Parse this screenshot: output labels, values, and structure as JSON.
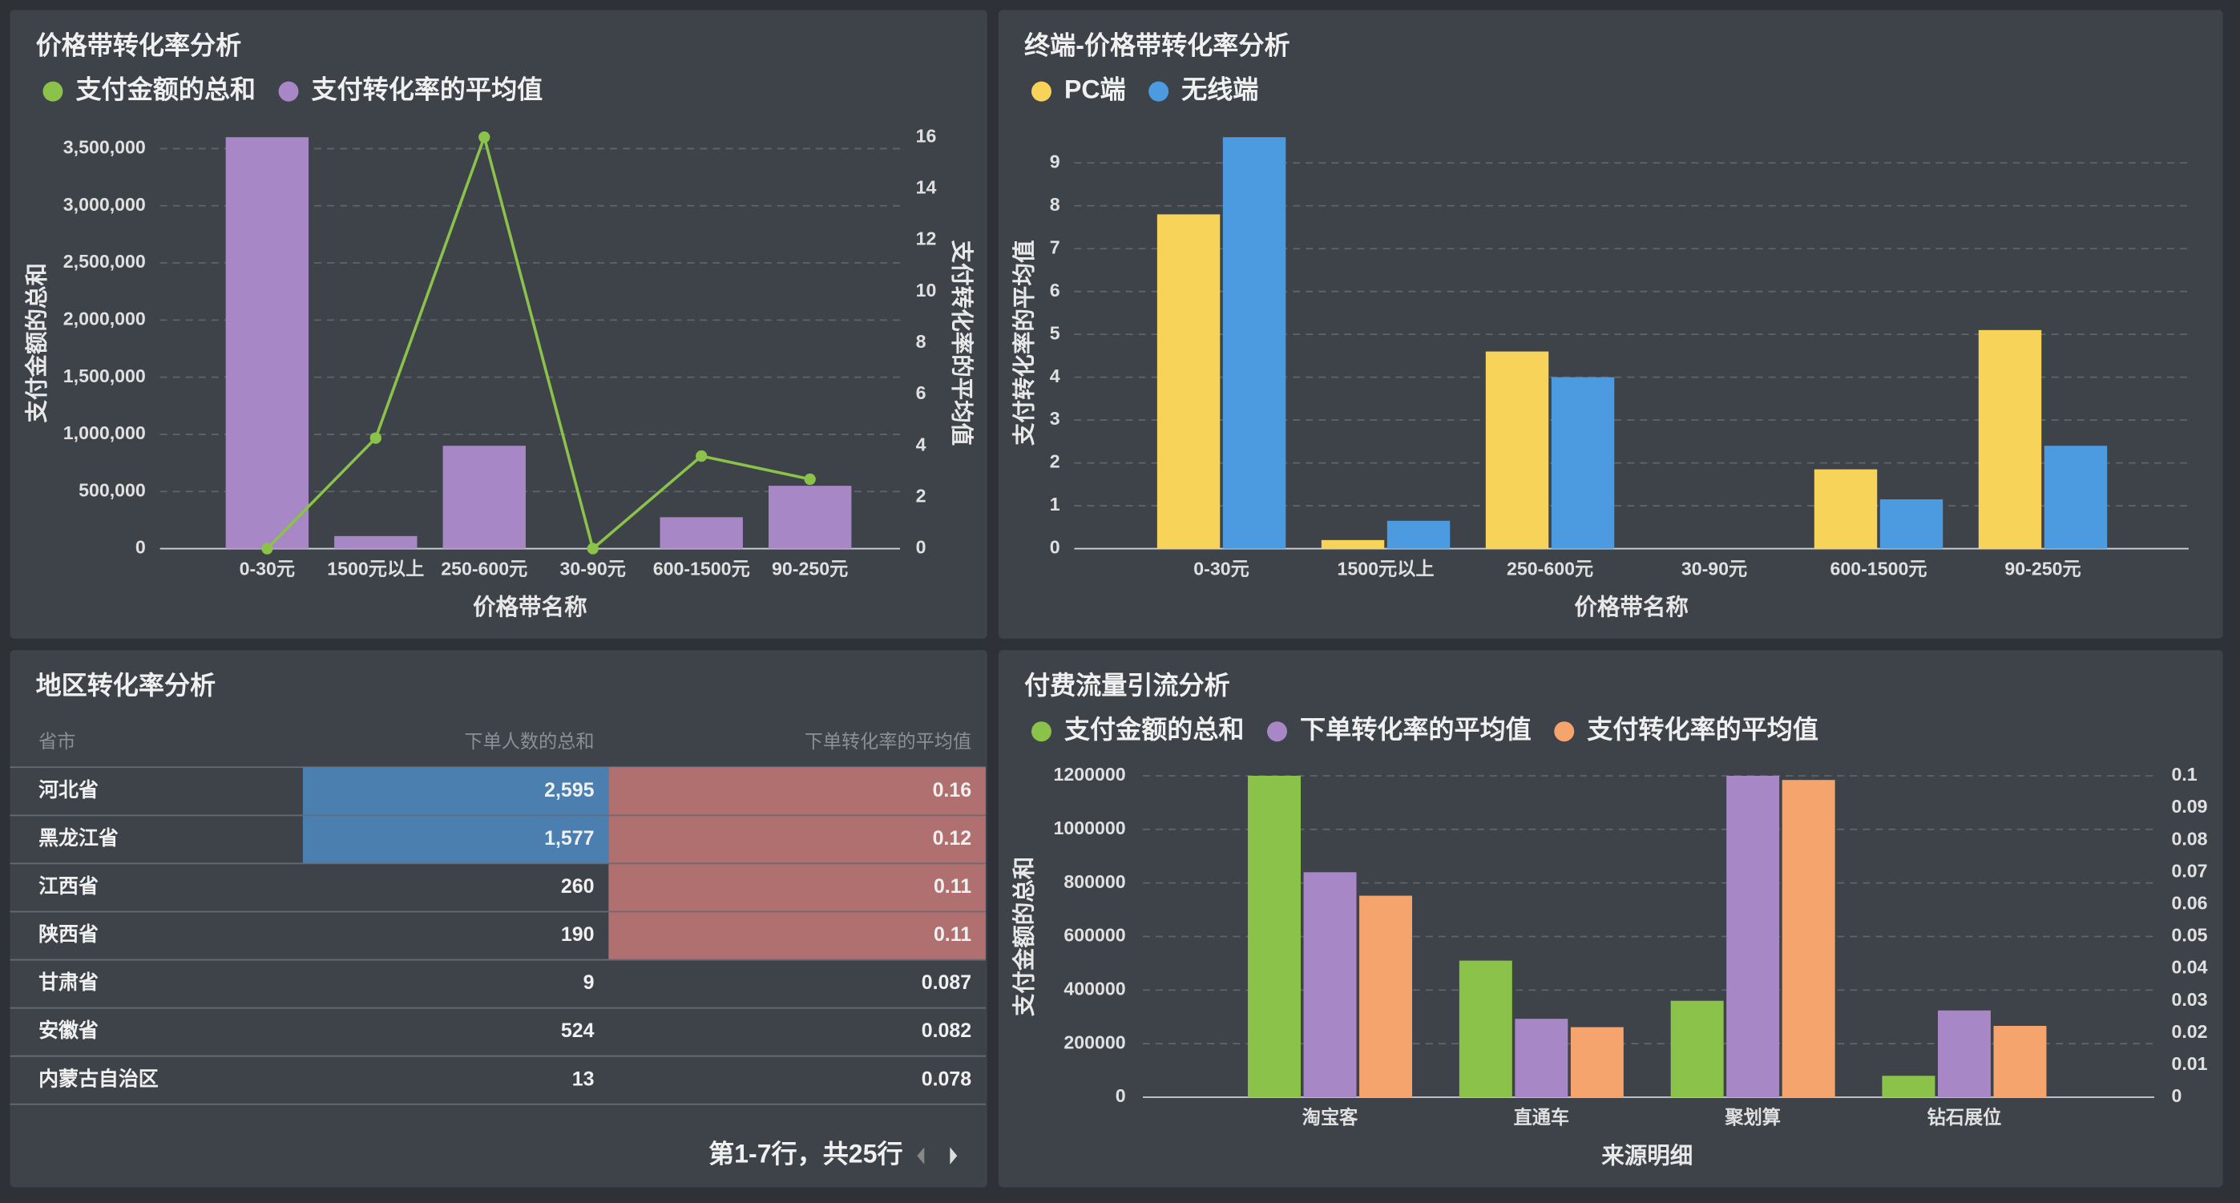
{
  "chart_data": [
    {
      "type": "bar",
      "title": "价格带转化率分析",
      "x_label": "价格带名称",
      "y_label": "支付金额的总和",
      "y2_label": "支付转化率的平均值",
      "categories": [
        "0-30元",
        "1500元以上",
        "250-600元",
        "30-90元",
        "600-1500元",
        "90-250元"
      ],
      "series": [
        {
          "name": "支付金额的总和",
          "color": "#8bc34a",
          "type": "line",
          "axis": "y2",
          "values": [
            0,
            4.3,
            16,
            0,
            3.6,
            2.7
          ]
        },
        {
          "name": "支付转化率的平均值",
          "color": "#a887c7",
          "type": "bar",
          "axis": "y",
          "values": [
            3600000,
            110000,
            900000,
            0,
            275000,
            550000
          ]
        }
      ],
      "ylim": [
        0,
        3600000
      ],
      "yticks": [
        0,
        {
          "value": 500000,
          "label": "500,000"
        },
        {
          "value": 1000000,
          "label": "1,000,000"
        },
        {
          "value": 1500000,
          "label": "1,500,000"
        },
        {
          "value": 2000000,
          "label": "2,000,000"
        },
        {
          "value": 2500000,
          "label": "2,500,000"
        },
        {
          "value": 3000000,
          "label": "3,000,000"
        },
        {
          "value": 3500000,
          "label": "3,500,000"
        }
      ],
      "y2lim": [
        0,
        16
      ],
      "y2ticks": [
        0,
        2,
        4,
        6,
        8,
        10,
        12,
        14,
        16
      ],
      "grid": true
    },
    {
      "type": "bar",
      "title": "终端-价格带转化率分析",
      "x_label": "价格带名称",
      "y_label": "支付转化率的平均值",
      "categories": [
        "0-30元",
        "1500元以上",
        "250-600元",
        "30-90元",
        "600-1500元",
        "90-250元"
      ],
      "series": [
        {
          "name": "PC端",
          "color": "#f7d35a",
          "values": [
            7.8,
            0.2,
            4.6,
            0,
            1.85,
            5.1
          ]
        },
        {
          "name": "无线端",
          "color": "#4c9be0",
          "values": [
            9.6,
            0.65,
            4.0,
            0,
            1.15,
            2.4
          ]
        }
      ],
      "ylim": [
        0,
        9.6
      ],
      "yticks": [
        0,
        1,
        2,
        3,
        4,
        5,
        6,
        7,
        8,
        9
      ],
      "grid": true
    },
    {
      "type": "bar",
      "title": "付费流量引流分析",
      "x_label": "来源明细",
      "y_label": "支付金额的总和",
      "categories": [
        "淘宝客",
        "直通车",
        "聚划算",
        "钻石展位"
      ],
      "series": [
        {
          "name": "支付金额的总和",
          "color": "#8bc34a",
          "axis": "y",
          "values": [
            1200000,
            510000,
            360000,
            80000
          ]
        },
        {
          "name": "下单转化率的平均值",
          "color": "#a887c7",
          "axis": "y2",
          "values": [
            0.07,
            0.0244,
            0.1,
            0.027
          ]
        },
        {
          "name": "支付转化率的平均值",
          "color": "#f4a46c",
          "axis": "y2",
          "values": [
            0.0627,
            0.0218,
            0.0987,
            0.0222
          ]
        }
      ],
      "ylim": [
        0,
        1200000
      ],
      "yticks": [
        0,
        200000,
        400000,
        600000,
        800000,
        1000000,
        1200000
      ],
      "y2lim": [
        0,
        0.1
      ],
      "y2ticks": [
        0,
        0.01,
        0.02,
        0.03,
        0.04,
        0.05,
        0.06,
        0.07,
        0.08,
        0.09,
        0.1
      ],
      "grid": true
    }
  ],
  "table": {
    "title": "地区转化率分析",
    "columns": [
      "省市",
      "下单人数的总和",
      "下单转化率的平均值"
    ],
    "rows": [
      [
        "河北省",
        "2,595",
        "0.16"
      ],
      [
        "黑龙江省",
        "1,577",
        "0.12"
      ],
      [
        "江西省",
        "260",
        "0.11"
      ],
      [
        "陕西省",
        "190",
        "0.11"
      ],
      [
        "甘肃省",
        "9",
        "0.087"
      ],
      [
        "安徽省",
        "524",
        "0.082"
      ],
      [
        "内蒙古自治区",
        "13",
        "0.078"
      ]
    ],
    "highlights": [
      {
        "column": 1,
        "rows": [
          0,
          1
        ],
        "color": "#4a7fb0"
      },
      {
        "column": 2,
        "rows": [
          0,
          1,
          2,
          3
        ],
        "color": "#b07070"
      }
    ],
    "footer": "第1-7行，共25行"
  }
}
